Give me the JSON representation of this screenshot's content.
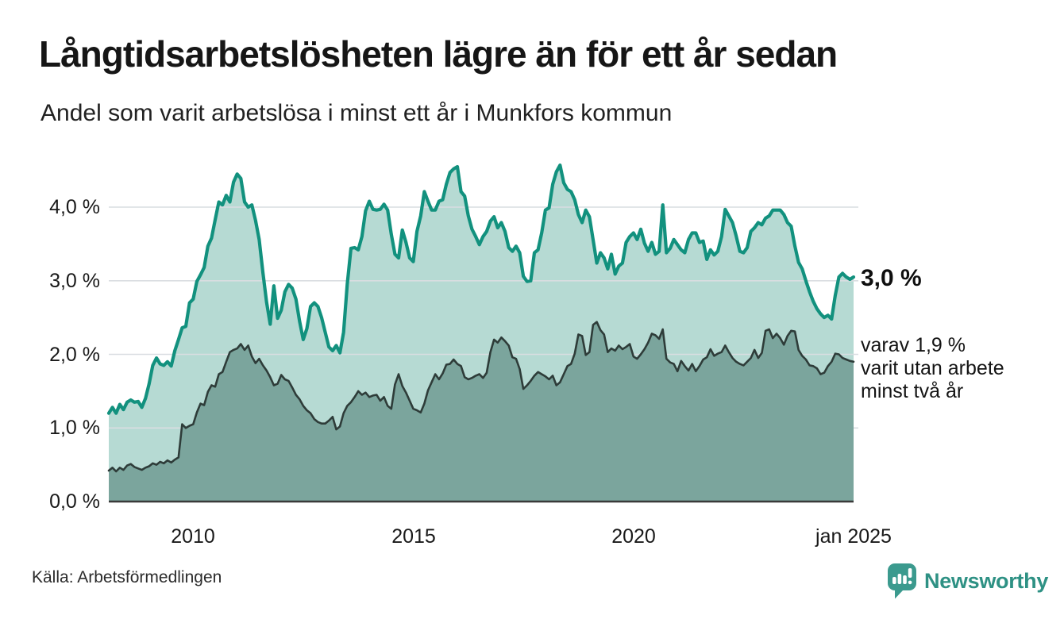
{
  "header": {
    "title": "Långtidsarbetslösheten lägre än för ett år sedan",
    "subtitle": "Andel som varit arbetslösa i minst ett år i Munkfors kommun"
  },
  "footer": {
    "source": "Källa: Arbetsförmedlingen",
    "brand": "Newsworthy"
  },
  "colors": {
    "brand-text": "#2e9184",
    "brand-icon": "#3b9a8e",
    "total-line": "#12917e",
    "total-fill": "#b6dad3",
    "two-line": "#2e3c39",
    "two-fill": "#7ba59d",
    "grid": "#d9dde1",
    "baseline": "#3a3a3a"
  },
  "chart_data": {
    "type": "area",
    "title": "Långtidsarbetslösheten lägre än för ett år sedan",
    "subtitle": "Andel som varit arbetslösa i minst ett år i Munkfors kommun",
    "unit": "%",
    "frequency": "monthly",
    "x_start": "2008-02",
    "x_end": "2025-01",
    "ylim": [
      0,
      4.75
    ],
    "grid": true,
    "legend_position": "right-annotations",
    "yticks": [
      {
        "value": 0,
        "label": "0,0 %"
      },
      {
        "value": 1,
        "label": "1,0 %"
      },
      {
        "value": 2,
        "label": "2,0 %"
      },
      {
        "value": 3,
        "label": "3,0 %"
      },
      {
        "value": 4,
        "label": "4,0 %"
      }
    ],
    "xticks": [
      {
        "month_index": 23,
        "label": "2010"
      },
      {
        "month_index": 83,
        "label": "2015"
      },
      {
        "month_index": 143,
        "label": "2020"
      },
      {
        "month_index": 203,
        "label": "jan 2025"
      }
    ],
    "annotations": {
      "total_label": "3,0 %",
      "two_year_label": "varav 1,9 %\nvarit utan arbete\nminst två år"
    },
    "series": [
      {
        "name": "Arbetslösa minst ett år",
        "latest_value": "3,0 %",
        "values": [
          1.2,
          1.28,
          1.2,
          1.32,
          1.25,
          1.35,
          1.38,
          1.35,
          1.36,
          1.28,
          1.4,
          1.6,
          1.85,
          1.95,
          1.87,
          1.85,
          1.9,
          1.84,
          2.05,
          2.2,
          2.36,
          2.38,
          2.7,
          2.75,
          2.99,
          3.08,
          3.18,
          3.47,
          3.58,
          3.83,
          4.07,
          4.03,
          4.16,
          4.07,
          4.34,
          4.45,
          4.39,
          4.07,
          4.0,
          4.03,
          3.82,
          3.56,
          3.11,
          2.71,
          2.41,
          2.93,
          2.49,
          2.6,
          2.85,
          2.95,
          2.9,
          2.75,
          2.45,
          2.2,
          2.35,
          2.65,
          2.7,
          2.65,
          2.5,
          2.3,
          2.1,
          2.05,
          2.12,
          2.02,
          2.3,
          2.95,
          3.44,
          3.45,
          3.42,
          3.6,
          3.95,
          4.08,
          3.97,
          3.96,
          3.97,
          4.04,
          3.96,
          3.63,
          3.36,
          3.31,
          3.69,
          3.52,
          3.31,
          3.26,
          3.67,
          3.88,
          4.21,
          4.08,
          3.96,
          3.96,
          4.08,
          4.1,
          4.31,
          4.47,
          4.52,
          4.55,
          4.21,
          4.15,
          3.88,
          3.7,
          3.6,
          3.49,
          3.6,
          3.67,
          3.81,
          3.87,
          3.72,
          3.79,
          3.67,
          3.45,
          3.4,
          3.47,
          3.38,
          3.06,
          2.99,
          3.0,
          3.38,
          3.42,
          3.65,
          3.96,
          3.99,
          4.31,
          4.48,
          4.57,
          4.33,
          4.24,
          4.21,
          4.1,
          3.9,
          3.79,
          3.96,
          3.87,
          3.56,
          3.24,
          3.38,
          3.31,
          3.16,
          3.36,
          3.09,
          3.2,
          3.24,
          3.52,
          3.6,
          3.65,
          3.56,
          3.7,
          3.51,
          3.4,
          3.52,
          3.36,
          3.4,
          4.03,
          3.38,
          3.44,
          3.56,
          3.49,
          3.42,
          3.38,
          3.56,
          3.65,
          3.65,
          3.52,
          3.54,
          3.29,
          3.42,
          3.35,
          3.4,
          3.6,
          3.97,
          3.88,
          3.79,
          3.61,
          3.4,
          3.38,
          3.45,
          3.67,
          3.72,
          3.79,
          3.76,
          3.85,
          3.88,
          3.96,
          3.96,
          3.96,
          3.9,
          3.79,
          3.74,
          3.47,
          3.25,
          3.16,
          3.0,
          2.85,
          2.72,
          2.62,
          2.55,
          2.5,
          2.53,
          2.48,
          2.8,
          3.05,
          3.1,
          3.05,
          3.02,
          3.05
        ]
      },
      {
        "name": "Varav utan arbete minst två år",
        "latest_value": "1,9 %",
        "values": [
          0.42,
          0.46,
          0.41,
          0.46,
          0.43,
          0.49,
          0.51,
          0.47,
          0.45,
          0.43,
          0.46,
          0.48,
          0.52,
          0.5,
          0.54,
          0.52,
          0.56,
          0.53,
          0.57,
          0.6,
          1.05,
          1.0,
          1.03,
          1.05,
          1.21,
          1.33,
          1.31,
          1.49,
          1.58,
          1.56,
          1.73,
          1.76,
          1.9,
          2.03,
          2.06,
          2.08,
          2.14,
          2.06,
          2.12,
          1.97,
          1.88,
          1.94,
          1.85,
          1.78,
          1.69,
          1.58,
          1.6,
          1.72,
          1.66,
          1.64,
          1.55,
          1.45,
          1.39,
          1.3,
          1.24,
          1.2,
          1.12,
          1.08,
          1.06,
          1.06,
          1.1,
          1.15,
          0.98,
          1.02,
          1.2,
          1.3,
          1.35,
          1.42,
          1.5,
          1.45,
          1.48,
          1.42,
          1.44,
          1.45,
          1.37,
          1.42,
          1.3,
          1.26,
          1.59,
          1.73,
          1.57,
          1.48,
          1.37,
          1.26,
          1.24,
          1.21,
          1.33,
          1.51,
          1.62,
          1.73,
          1.66,
          1.74,
          1.86,
          1.87,
          1.93,
          1.87,
          1.84,
          1.69,
          1.66,
          1.68,
          1.71,
          1.73,
          1.68,
          1.75,
          2.03,
          2.2,
          2.16,
          2.23,
          2.18,
          2.12,
          1.96,
          1.94,
          1.8,
          1.53,
          1.58,
          1.64,
          1.71,
          1.76,
          1.73,
          1.7,
          1.66,
          1.71,
          1.58,
          1.62,
          1.73,
          1.84,
          1.87,
          2.01,
          2.27,
          2.25,
          1.99,
          2.03,
          2.4,
          2.44,
          2.33,
          2.27,
          2.03,
          2.08,
          2.05,
          2.12,
          2.07,
          2.1,
          2.14,
          1.97,
          1.94,
          2.0,
          2.07,
          2.16,
          2.28,
          2.26,
          2.21,
          2.34,
          1.94,
          1.89,
          1.87,
          1.77,
          1.91,
          1.84,
          1.78,
          1.87,
          1.77,
          1.84,
          1.93,
          1.96,
          2.07,
          1.98,
          2.01,
          2.03,
          2.12,
          2.03,
          1.95,
          1.9,
          1.87,
          1.85,
          1.9,
          1.95,
          2.06,
          1.95,
          2.02,
          2.32,
          2.34,
          2.22,
          2.28,
          2.22,
          2.13,
          2.25,
          2.32,
          2.31,
          2.06,
          1.98,
          1.93,
          1.85,
          1.84,
          1.81,
          1.73,
          1.75,
          1.84,
          1.9,
          2.01,
          2.0,
          1.95,
          1.93,
          1.91,
          1.9
        ]
      }
    ]
  }
}
